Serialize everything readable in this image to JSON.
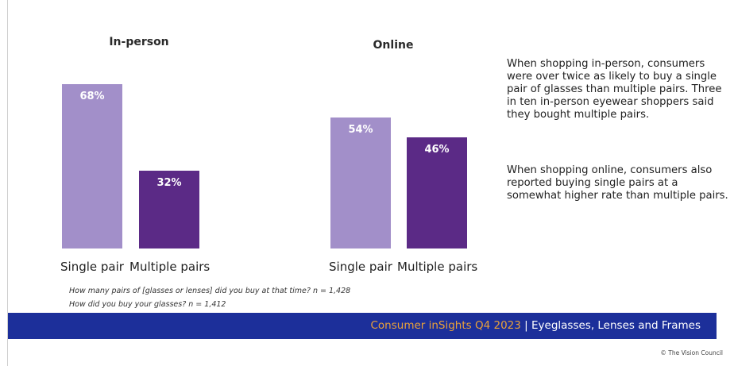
{
  "chart_data": [
    {
      "type": "bar",
      "title": "In-person",
      "categories": [
        "Single pair",
        "Multiple pairs"
      ],
      "values": [
        68,
        32
      ],
      "data_labels": [
        "68%",
        "32%"
      ],
      "colors": [
        "#a28fc9",
        "#5b2a86"
      ],
      "ylim": [
        0,
        100
      ]
    },
    {
      "type": "bar",
      "title": "Online",
      "categories": [
        "Single pair",
        "Multiple pairs"
      ],
      "values": [
        54,
        46
      ],
      "data_labels": [
        "54%",
        "46%"
      ],
      "colors": [
        "#a28fc9",
        "#5b2a86"
      ],
      "ylim": [
        0,
        100
      ]
    }
  ],
  "description": {
    "paragraph1": "When shopping in-person, consumers were over twice as likely to buy a single pair of glasses than multiple pairs. Three in ten in-person eyewear shoppers said they bought multiple pairs.",
    "paragraph2": "When shopping online, consumers also reported buying single pairs at a somewhat higher rate than multiple pairs."
  },
  "questions": {
    "q1": "How many pairs of [glasses or lenses] did you buy at that time? n = 1,428",
    "q2": "How did you buy your glasses? n = 1,412"
  },
  "footer": {
    "accent": "Consumer inSights Q4 2023",
    "rest": " | Eyeglasses, Lenses and Frames",
    "band_color": "#1c2f9a"
  },
  "copyright": "© The Vision Council"
}
